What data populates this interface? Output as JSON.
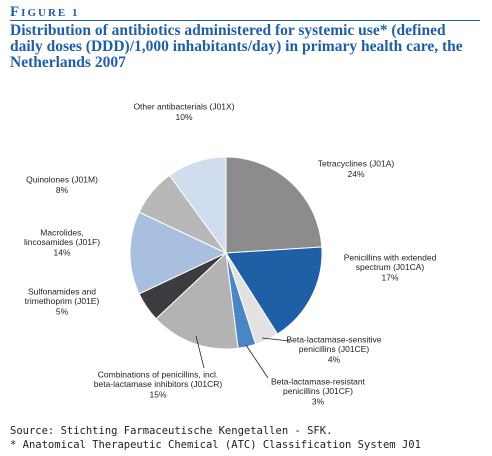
{
  "chart_data": {
    "type": "pie",
    "figure_label": "FIGURE 1",
    "title": "Distribution of antibiotics administered for systemic use* (defined daily doses (DDD)/1,000 inhabitants/day) in primary health care, the Netherlands 2007",
    "categories": [
      [
        "Tetracyclines (J01A)"
      ],
      [
        "Penicillins with extended",
        "spectrum (J01CA)"
      ],
      [
        "Beta-lactamase-sensitive",
        "penicillins (J01CE)"
      ],
      [
        "Beta-lactamase-resistant",
        "penicillins (J01CF)"
      ],
      [
        "Combinations of penicillins, incl.",
        "beta-lactamase inhibitors (J01CR)"
      ],
      [
        "Sulfonamides and",
        "trimethoprim (J01E)"
      ],
      [
        "Macrolides,",
        "lincosamides (J01F)"
      ],
      [
        "Quinolones (J01M)"
      ],
      [
        "Other antibacterials (J01X)"
      ]
    ],
    "values": [
      24,
      17,
      4,
      3,
      15,
      5,
      14,
      8,
      10
    ],
    "value_labels": [
      "24%",
      "17%",
      "4%",
      "3%",
      "15%",
      "5%",
      "14%",
      "8%",
      "10%"
    ],
    "colors": [
      "#8c8c8c",
      "#1f5fa6",
      "#e2e2e2",
      "#4a86c5",
      "#b3b3b3",
      "#3b3b40",
      "#a9bfdf",
      "#b8b8b8",
      "#d0ddef"
    ],
    "source": "Source: Stichting Farmaceutische Kengetallen - SFK.",
    "footnote": "* Anatomical Therapeutic Chemical (ATC) Classification System J01"
  }
}
